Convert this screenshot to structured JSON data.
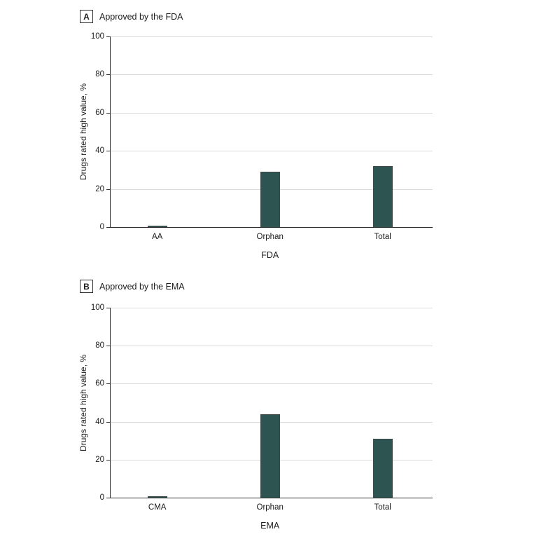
{
  "figure_name": "Drugs rated high value by approval pathway",
  "colors": {
    "bar_fill": "#2e5452",
    "bar_border": "#3e4a49",
    "axis": "#2f2f2f",
    "gridline": "#dbdbdb",
    "text": "#1c1c1c",
    "background": "#ffffff"
  },
  "chart_data": [
    {
      "type": "bar",
      "panel_label": "A",
      "title": "Approved by the FDA",
      "categories": [
        "AA",
        "Orphan",
        "Total"
      ],
      "values": [
        0.5,
        29,
        32
      ],
      "xlabel": "FDA",
      "ylabel": "Drugs rated high value, %",
      "ylim": [
        0,
        100
      ],
      "yticks": [
        0,
        20,
        40,
        60,
        80,
        100
      ],
      "grid": true,
      "legend": "none"
    },
    {
      "type": "bar",
      "panel_label": "B",
      "title": "Approved by the EMA",
      "categories": [
        "CMA",
        "Orphan",
        "Total"
      ],
      "values": [
        0.5,
        44,
        31
      ],
      "xlabel": "EMA",
      "ylabel": "Drugs rated high value, %",
      "ylim": [
        0,
        100
      ],
      "yticks": [
        0,
        20,
        40,
        60,
        80,
        100
      ],
      "grid": true,
      "legend": "none"
    }
  ]
}
